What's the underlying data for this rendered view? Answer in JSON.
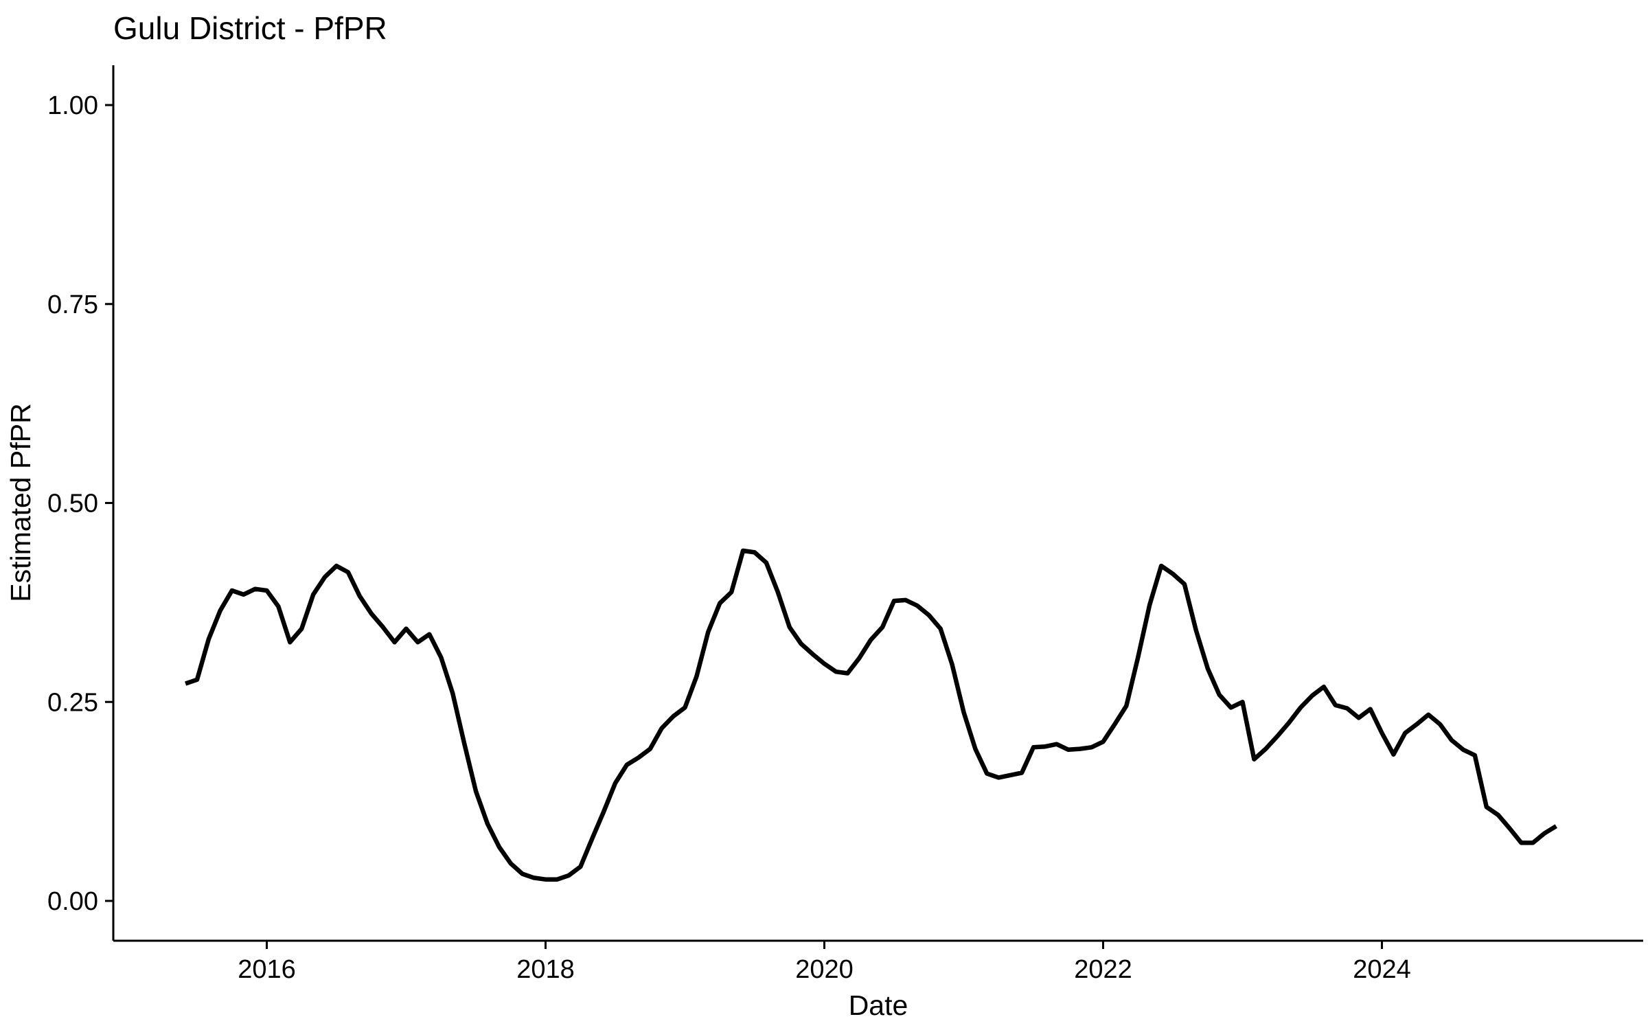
{
  "chart_data": {
    "type": "line",
    "title": "Gulu District - PfPR",
    "xlabel": "Date",
    "ylabel": "Estimated PfPR",
    "ylim": [
      0,
      1
    ],
    "y_ticks": [
      {
        "value": 0.0,
        "label": "0.00"
      },
      {
        "value": 0.25,
        "label": "0.25"
      },
      {
        "value": 0.5,
        "label": "0.50"
      },
      {
        "value": 0.75,
        "label": "0.75"
      },
      {
        "value": 1.0,
        "label": "1.00"
      }
    ],
    "x_ticks": [
      {
        "year": 2016,
        "label": "2016"
      },
      {
        "year": 2018,
        "label": "2018"
      },
      {
        "year": 2020,
        "label": "2020"
      },
      {
        "year": 2022,
        "label": "2022"
      },
      {
        "year": 2024,
        "label": "2024"
      }
    ],
    "grid": "off",
    "legend": "none",
    "line_color": "#000000",
    "background_color": "#ffffff",
    "series": [
      {
        "name": "Estimated PfPR",
        "points": [
          [
            "2015-06",
            0.273
          ],
          [
            "2015-07",
            0.278
          ],
          [
            "2015-08",
            0.329
          ],
          [
            "2015-09",
            0.365
          ],
          [
            "2015-10",
            0.39
          ],
          [
            "2015-11",
            0.385
          ],
          [
            "2015-12",
            0.392
          ],
          [
            "2016-01",
            0.39
          ],
          [
            "2016-02",
            0.37
          ],
          [
            "2016-03",
            0.325
          ],
          [
            "2016-04",
            0.342
          ],
          [
            "2016-05",
            0.385
          ],
          [
            "2016-06",
            0.407
          ],
          [
            "2016-07",
            0.421
          ],
          [
            "2016-08",
            0.413
          ],
          [
            "2016-09",
            0.383
          ],
          [
            "2016-10",
            0.361
          ],
          [
            "2016-11",
            0.344
          ],
          [
            "2016-12",
            0.325
          ],
          [
            "2017-01",
            0.342
          ],
          [
            "2017-02",
            0.325
          ],
          [
            "2017-03",
            0.335
          ],
          [
            "2017-04",
            0.306
          ],
          [
            "2017-05",
            0.261
          ],
          [
            "2017-06",
            0.198
          ],
          [
            "2017-07",
            0.138
          ],
          [
            "2017-08",
            0.097
          ],
          [
            "2017-09",
            0.068
          ],
          [
            "2017-10",
            0.047
          ],
          [
            "2017-11",
            0.034
          ],
          [
            "2017-12",
            0.029
          ],
          [
            "2018-01",
            0.027
          ],
          [
            "2018-02",
            0.027
          ],
          [
            "2018-03",
            0.032
          ],
          [
            "2018-04",
            0.043
          ],
          [
            "2018-05",
            0.078
          ],
          [
            "2018-06",
            0.112
          ],
          [
            "2018-07",
            0.148
          ],
          [
            "2018-08",
            0.171
          ],
          [
            "2018-09",
            0.18
          ],
          [
            "2018-10",
            0.191
          ],
          [
            "2018-11",
            0.217
          ],
          [
            "2018-12",
            0.232
          ],
          [
            "2019-01",
            0.243
          ],
          [
            "2019-02",
            0.282
          ],
          [
            "2019-03",
            0.338
          ],
          [
            "2019-04",
            0.374
          ],
          [
            "2019-05",
            0.388
          ],
          [
            "2019-06",
            0.44
          ],
          [
            "2019-07",
            0.438
          ],
          [
            "2019-08",
            0.425
          ],
          [
            "2019-09",
            0.388
          ],
          [
            "2019-10",
            0.344
          ],
          [
            "2019-11",
            0.323
          ],
          [
            "2019-12",
            0.31
          ],
          [
            "2020-01",
            0.298
          ],
          [
            "2020-02",
            0.288
          ],
          [
            "2020-03",
            0.286
          ],
          [
            "2020-04",
            0.305
          ],
          [
            "2020-05",
            0.328
          ],
          [
            "2020-06",
            0.344
          ],
          [
            "2020-07",
            0.377
          ],
          [
            "2020-08",
            0.378
          ],
          [
            "2020-09",
            0.371
          ],
          [
            "2020-10",
            0.359
          ],
          [
            "2020-11",
            0.342
          ],
          [
            "2020-12",
            0.297
          ],
          [
            "2021-01",
            0.237
          ],
          [
            "2021-02",
            0.191
          ],
          [
            "2021-03",
            0.16
          ],
          [
            "2021-04",
            0.155
          ],
          [
            "2021-05",
            0.158
          ],
          [
            "2021-06",
            0.161
          ],
          [
            "2021-07",
            0.193
          ],
          [
            "2021-08",
            0.194
          ],
          [
            "2021-09",
            0.197
          ],
          [
            "2021-10",
            0.19
          ],
          [
            "2021-11",
            0.191
          ],
          [
            "2021-12",
            0.193
          ],
          [
            "2022-01",
            0.2
          ],
          [
            "2022-02",
            0.222
          ],
          [
            "2022-03",
            0.245
          ],
          [
            "2022-04",
            0.306
          ],
          [
            "2022-05",
            0.372
          ],
          [
            "2022-06",
            0.421
          ],
          [
            "2022-07",
            0.411
          ],
          [
            "2022-08",
            0.398
          ],
          [
            "2022-09",
            0.34
          ],
          [
            "2022-10",
            0.292
          ],
          [
            "2022-11",
            0.259
          ],
          [
            "2022-12",
            0.243
          ],
          [
            "2023-01",
            0.25
          ],
          [
            "2023-02",
            0.178
          ],
          [
            "2023-03",
            0.191
          ],
          [
            "2023-04",
            0.207
          ],
          [
            "2023-05",
            0.224
          ],
          [
            "2023-06",
            0.243
          ],
          [
            "2023-07",
            0.258
          ],
          [
            "2023-08",
            0.269
          ],
          [
            "2023-09",
            0.246
          ],
          [
            "2023-10",
            0.242
          ],
          [
            "2023-11",
            0.23
          ],
          [
            "2023-12",
            0.241
          ],
          [
            "2024-01",
            0.211
          ],
          [
            "2024-02",
            0.184
          ],
          [
            "2024-03",
            0.211
          ],
          [
            "2024-04",
            0.222
          ],
          [
            "2024-05",
            0.234
          ],
          [
            "2024-06",
            0.222
          ],
          [
            "2024-07",
            0.202
          ],
          [
            "2024-08",
            0.19
          ],
          [
            "2024-09",
            0.183
          ],
          [
            "2024-10",
            0.118
          ],
          [
            "2024-11",
            0.108
          ],
          [
            "2024-12",
            0.091
          ],
          [
            "2025-01",
            0.073
          ],
          [
            "2025-02",
            0.073
          ],
          [
            "2025-03",
            0.085
          ],
          [
            "2025-04",
            0.094
          ]
        ]
      }
    ]
  }
}
